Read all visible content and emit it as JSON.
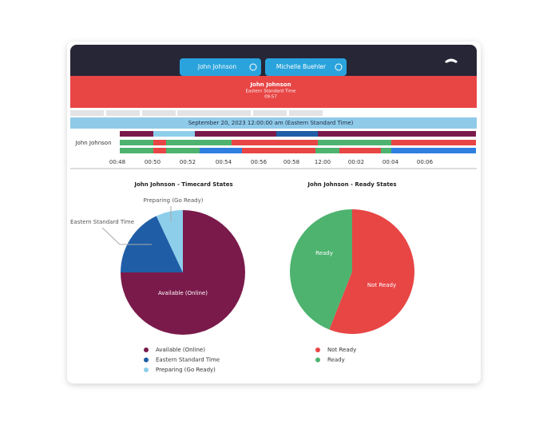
{
  "header": {
    "tabs": [
      "John Johnson",
      "Michelle Buehler"
    ]
  },
  "banner": {
    "name": "John Johnson",
    "timezone": "Eastern Standard Time",
    "time": "09:57"
  },
  "timeline": {
    "date": "September 20, 2023 12:00:00 am (Eastern Standard Time)",
    "agent": "John Johnson",
    "times": [
      "00:48",
      "00:50",
      "00:52",
      "00:54",
      "00:56",
      "00:58",
      "12:00",
      "00:02",
      "00:04",
      "00:06"
    ]
  },
  "chart_data": [
    {
      "type": "pie",
      "title": "John Johnson - Timecard States",
      "categories": [
        "Available (Online)",
        "Eastern Standard Time",
        "Preparing (Go Ready)"
      ],
      "values": [
        75,
        18,
        7
      ],
      "colors": [
        "#7a1a4b",
        "#1f5ea6",
        "#8dcfeb"
      ]
    },
    {
      "type": "pie",
      "title": "John Johnson - Ready States",
      "categories": [
        "Not Ready",
        "Ready"
      ],
      "values": [
        56,
        44
      ],
      "colors": [
        "#e84545",
        "#4db36f"
      ]
    }
  ]
}
